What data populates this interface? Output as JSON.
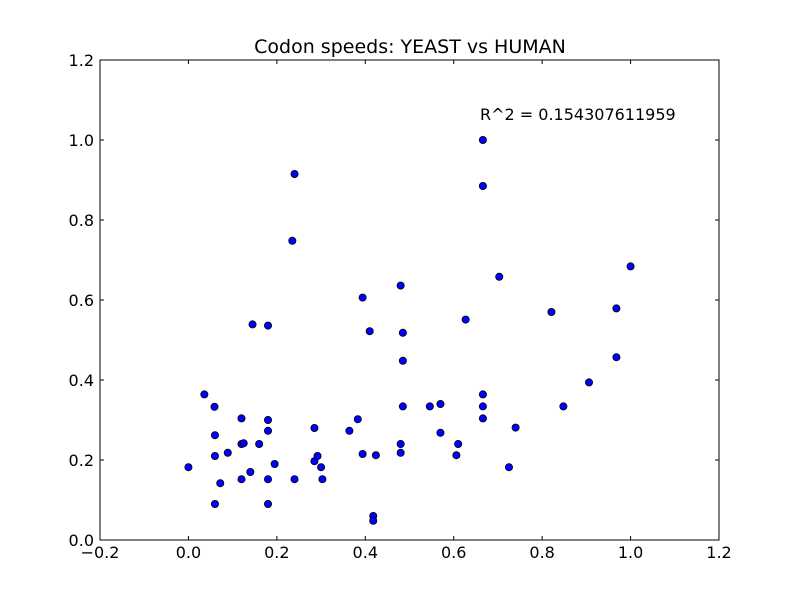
{
  "chart_data": {
    "type": "scatter",
    "title": "Codon speeds: YEAST vs HUMAN",
    "xlabel": "",
    "ylabel": "",
    "xlim": [
      -0.2,
      1.2
    ],
    "ylim": [
      0.0,
      1.2
    ],
    "x_ticks": [
      -0.2,
      0.0,
      0.2,
      0.4,
      0.6,
      0.8,
      1.0,
      1.2
    ],
    "x_tick_labels": [
      "−0.2",
      "0.0",
      "0.2",
      "0.4",
      "0.6",
      "0.8",
      "1.0",
      "1.2"
    ],
    "y_ticks": [
      0.0,
      0.2,
      0.4,
      0.6,
      0.8,
      1.0,
      1.2
    ],
    "y_tick_labels": [
      "0.0",
      "0.2",
      "0.4",
      "0.6",
      "0.8",
      "1.0",
      "1.2"
    ],
    "grid": false,
    "annotation": {
      "text": "R^2 = 0.154307611959",
      "x": 0.66,
      "y": 1.05
    },
    "marker_color": "#0000ff",
    "marker_edge_color": "#000000",
    "points": [
      [
        0.0,
        0.182
      ],
      [
        0.036,
        0.364
      ],
      [
        0.059,
        0.333
      ],
      [
        0.06,
        0.262
      ],
      [
        0.06,
        0.21
      ],
      [
        0.06,
        0.09
      ],
      [
        0.072,
        0.142
      ],
      [
        0.089,
        0.218
      ],
      [
        0.12,
        0.304
      ],
      [
        0.12,
        0.24
      ],
      [
        0.12,
        0.152
      ],
      [
        0.125,
        0.242
      ],
      [
        0.14,
        0.17
      ],
      [
        0.145,
        0.539
      ],
      [
        0.16,
        0.24
      ],
      [
        0.18,
        0.536
      ],
      [
        0.18,
        0.3
      ],
      [
        0.18,
        0.273
      ],
      [
        0.18,
        0.152
      ],
      [
        0.18,
        0.09
      ],
      [
        0.195,
        0.19
      ],
      [
        0.235,
        0.748
      ],
      [
        0.24,
        0.915
      ],
      [
        0.24,
        0.152
      ],
      [
        0.285,
        0.28
      ],
      [
        0.285,
        0.197
      ],
      [
        0.292,
        0.21
      ],
      [
        0.3,
        0.182
      ],
      [
        0.303,
        0.152
      ],
      [
        0.364,
        0.273
      ],
      [
        0.383,
        0.302
      ],
      [
        0.394,
        0.606
      ],
      [
        0.394,
        0.215
      ],
      [
        0.41,
        0.522
      ],
      [
        0.418,
        0.06
      ],
      [
        0.418,
        0.048
      ],
      [
        0.424,
        0.212
      ],
      [
        0.48,
        0.636
      ],
      [
        0.48,
        0.24
      ],
      [
        0.48,
        0.218
      ],
      [
        0.485,
        0.518
      ],
      [
        0.485,
        0.448
      ],
      [
        0.485,
        0.334
      ],
      [
        0.546,
        0.334
      ],
      [
        0.57,
        0.34
      ],
      [
        0.57,
        0.268
      ],
      [
        0.606,
        0.212
      ],
      [
        0.61,
        0.24
      ],
      [
        0.627,
        0.551
      ],
      [
        0.666,
        1.0
      ],
      [
        0.666,
        0.885
      ],
      [
        0.666,
        0.364
      ],
      [
        0.666,
        0.334
      ],
      [
        0.666,
        0.304
      ],
      [
        0.703,
        0.658
      ],
      [
        0.725,
        0.182
      ],
      [
        0.74,
        0.281
      ],
      [
        0.821,
        0.57
      ],
      [
        0.848,
        0.334
      ],
      [
        0.906,
        0.394
      ],
      [
        0.968,
        0.579
      ],
      [
        0.968,
        0.457
      ],
      [
        1.0,
        0.684
      ]
    ]
  }
}
